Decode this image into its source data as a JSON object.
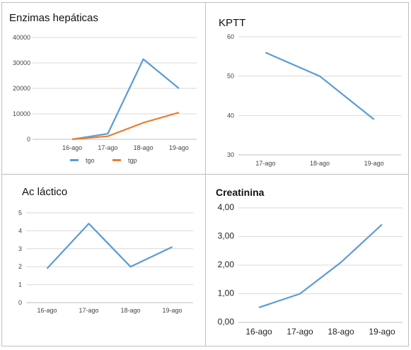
{
  "chart_data": [
    {
      "type": "line",
      "title": "Enzimas hepáticas",
      "categories": [
        "16-ago",
        "17-ago",
        "18-ago",
        "19-ago"
      ],
      "yticks": [
        "0",
        "10000",
        "20000",
        "30000",
        "40000"
      ],
      "ylim": [
        0,
        40000
      ],
      "grid": true,
      "legend": "bottom",
      "series": [
        {
          "name": "tgo",
          "color": "#5b9bd5",
          "values": [
            0,
            2200,
            31500,
            20000
          ]
        },
        {
          "name": "tgp",
          "color": "#ed7d31",
          "values": [
            0,
            1200,
            6500,
            10500
          ]
        }
      ]
    },
    {
      "type": "line",
      "title": "KPTT",
      "categories": [
        "17-ago",
        "18-ago",
        "19-ago"
      ],
      "yticks": [
        "30",
        "40",
        "50",
        "60"
      ],
      "ylim": [
        30,
        60
      ],
      "grid": true,
      "series": [
        {
          "color": "#5b9bd5",
          "values": [
            56,
            50,
            39
          ]
        }
      ]
    },
    {
      "type": "line",
      "title": "Ac láctico",
      "categories": [
        "16-ago",
        "17-ago",
        "18-ago",
        "19-ago"
      ],
      "yticks": [
        "0",
        "1",
        "2",
        "3",
        "4",
        "5"
      ],
      "ylim": [
        0,
        5
      ],
      "grid": true,
      "series": [
        {
          "color": "#5b9bd5",
          "values": [
            1.9,
            4.4,
            2.0,
            3.1
          ]
        }
      ]
    },
    {
      "type": "line",
      "title": "Creatinina",
      "categories": [
        "16-ago",
        "17-ago",
        "18-ago",
        "19-ago"
      ],
      "yticks": [
        "0,00",
        "1,00",
        "2,00",
        "3,00",
        "4,00"
      ],
      "ylim": [
        0,
        4
      ],
      "grid": true,
      "series": [
        {
          "color": "#5b9bd5",
          "values": [
            0.52,
            1.0,
            2.1,
            3.42
          ]
        }
      ]
    }
  ]
}
